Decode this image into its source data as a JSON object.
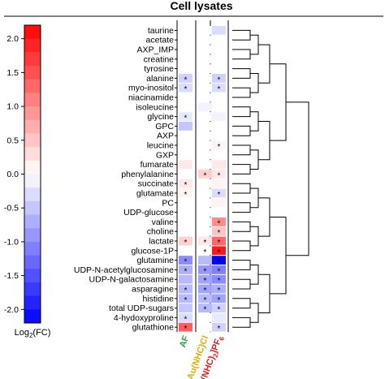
{
  "chart_data": {
    "type": "heatmap",
    "title": "Cell lysates",
    "colorbar": {
      "label": "Log2(FC)",
      "label_base": "Log",
      "label_sub": "2",
      "label_rest": "(FC)",
      "min": -2.2,
      "max": 2.2,
      "ticks": [
        2.0,
        1.5,
        1.0,
        0.5,
        0.0,
        -0.5,
        -1.0,
        -1.5,
        -2.0
      ],
      "tick_labels": [
        "2.0",
        "1.5",
        "1.0",
        "0.5",
        "0.0",
        "-0.5",
        "-1.0",
        "-1.5",
        "-2.0"
      ]
    },
    "columns": [
      {
        "label": "AF",
        "color": "#2aa84a"
      },
      {
        "label": "Au(NHC)Cl",
        "color": "#e0b000"
      },
      {
        "label": "[Au(NHC)2]PF6",
        "label_parts": [
          "[Au(NHC)",
          "2",
          "]PF",
          "6"
        ],
        "color": "#e02020"
      }
    ],
    "rows": [
      "taurine",
      "acetate",
      "AXP_IMP",
      "creatine",
      "tyrosine",
      "alanine",
      "myo-inositol",
      "niacinamide",
      "isoleucine",
      "glycine",
      "GPC",
      "AXP",
      "leucine",
      "GXP",
      "fumarate",
      "phenylalanine",
      "succinate",
      "glutamate",
      "PC",
      "UDP-glucose",
      "valine",
      "choline",
      "lactate",
      "glucose-1P",
      "glutamine",
      "UDP-N-acetylglucosamine",
      "UDP-N-galactosamine",
      "asparagine",
      "histidine",
      "total UDP-sugars",
      "4-hydoxyproline",
      "glutathione"
    ],
    "values": [
      [
        0.0,
        0.0,
        -0.3
      ],
      [
        0.0,
        0.0,
        0.0
      ],
      [
        0.0,
        0.0,
        0.0
      ],
      [
        0.0,
        0.0,
        0.0
      ],
      [
        0.0,
        0.0,
        0.0
      ],
      [
        -0.4,
        0.0,
        -0.4
      ],
      [
        -0.3,
        0.0,
        -0.3
      ],
      [
        0.0,
        0.0,
        0.0
      ],
      [
        0.0,
        -0.1,
        0.0
      ],
      [
        -0.2,
        0.0,
        -0.1
      ],
      [
        -0.5,
        0.0,
        0.0
      ],
      [
        0.0,
        0.0,
        0.0
      ],
      [
        0.0,
        0.0,
        0.1
      ],
      [
        0.0,
        0.0,
        0.0
      ],
      [
        0.2,
        0.0,
        0.2
      ],
      [
        0.0,
        0.4,
        0.2
      ],
      [
        0.2,
        0.0,
        0.1
      ],
      [
        0.1,
        0.0,
        -0.3
      ],
      [
        0.0,
        0.0,
        0.1
      ],
      [
        0.0,
        0.0,
        0.0
      ],
      [
        0.0,
        0.0,
        1.0
      ],
      [
        0.0,
        0.0,
        0.5
      ],
      [
        0.4,
        0.2,
        1.3
      ],
      [
        0.0,
        0.0,
        2.0
      ],
      [
        -1.0,
        -0.6,
        -2.2
      ],
      [
        -0.7,
        -0.9,
        -1.1
      ],
      [
        -0.6,
        -0.8,
        -1.0
      ],
      [
        -0.6,
        -0.8,
        -0.7
      ],
      [
        -0.6,
        -0.6,
        -0.8
      ],
      [
        -0.5,
        -0.6,
        -0.4
      ],
      [
        -0.3,
        0.0,
        -0.2
      ],
      [
        1.4,
        0.0,
        -0.4
      ]
    ],
    "significance": [
      [
        "",
        "",
        ""
      ],
      [
        "",
        "",
        ""
      ],
      [
        "",
        "",
        ""
      ],
      [
        "",
        "",
        ""
      ],
      [
        "",
        "",
        ""
      ],
      [
        "*",
        "",
        "*"
      ],
      [
        "*",
        "",
        "*"
      ],
      [
        "",
        "",
        ""
      ],
      [
        "",
        "",
        ""
      ],
      [
        "*",
        "",
        ""
      ],
      [
        "",
        "",
        ""
      ],
      [
        "",
        "",
        ""
      ],
      [
        "",
        "",
        "*"
      ],
      [
        "",
        "",
        ""
      ],
      [
        "",
        "",
        ""
      ],
      [
        "",
        "*",
        "*"
      ],
      [
        "*",
        "",
        ""
      ],
      [
        "*",
        "",
        "*"
      ],
      [
        "",
        "",
        ""
      ],
      [
        "",
        "",
        ""
      ],
      [
        "",
        "",
        "*"
      ],
      [
        "",
        "",
        "*"
      ],
      [
        "*",
        "*",
        "*"
      ],
      [
        "",
        "*",
        "*"
      ],
      [
        "*",
        "",
        "*"
      ],
      [
        "*",
        "*",
        "*"
      ],
      [
        "",
        "*",
        "*"
      ],
      [
        "*",
        "*",
        "*"
      ],
      [
        "*",
        "*",
        "*"
      ],
      [
        "",
        "*",
        "*"
      ],
      [
        "*",
        "",
        ""
      ],
      [
        "*",
        "",
        "*"
      ]
    ],
    "dendrogram": true,
    "colors": {
      "high": "#ff0000",
      "mid": "#ffffff",
      "low": "#0000ff"
    }
  }
}
